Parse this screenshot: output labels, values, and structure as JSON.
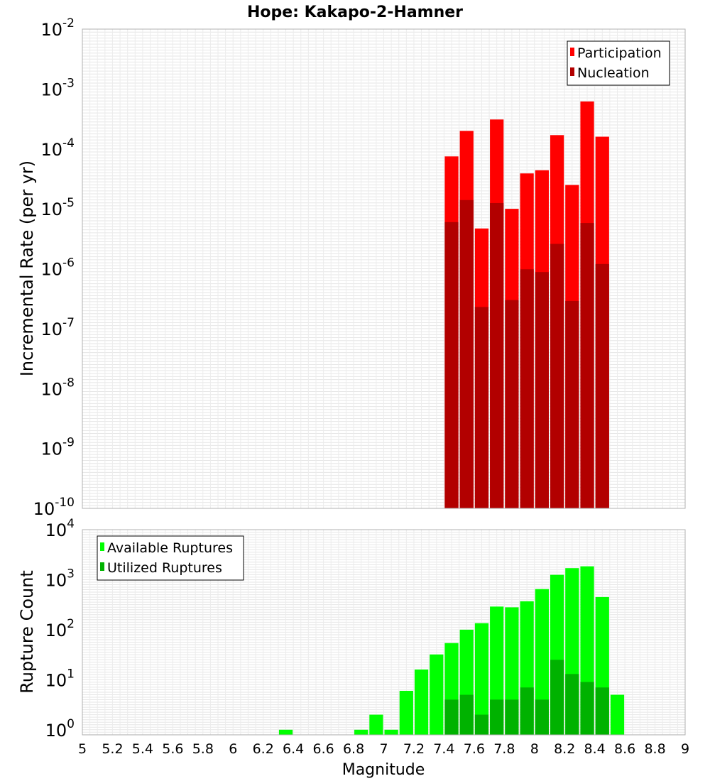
{
  "title": "Hope: Kakapo-2-Hamner",
  "x_axis": {
    "label": "Magnitude",
    "range": [
      5,
      9
    ],
    "ticks": [
      "5",
      "5.2",
      "5.4",
      "5.6",
      "5.8",
      "6",
      "6.2",
      "6.4",
      "6.6",
      "6.8",
      "7",
      "7.2",
      "7.4",
      "7.6",
      "7.8",
      "8",
      "8.2",
      "8.4",
      "8.6",
      "8.8",
      "9"
    ]
  },
  "chart_data": [
    {
      "type": "bar",
      "title": "Hope: Kakapo-2-Hamner",
      "ylabel": "Incremental Rate (per yr)",
      "yscale": "log",
      "ylim": [
        1e-10,
        0.01
      ],
      "y_ticks": [
        {
          "base": "10",
          "exp": "-10"
        },
        {
          "base": "10",
          "exp": "-9"
        },
        {
          "base": "10",
          "exp": "-8"
        },
        {
          "base": "10",
          "exp": "-7"
        },
        {
          "base": "10",
          "exp": "-6"
        },
        {
          "base": "10",
          "exp": "-5"
        },
        {
          "base": "10",
          "exp": "-4"
        },
        {
          "base": "10",
          "exp": "-3"
        },
        {
          "base": "10",
          "exp": "-2"
        }
      ],
      "grid": true,
      "legend_position": "top-right",
      "bar_width": 0.1,
      "x": [
        7.45,
        7.55,
        7.65,
        7.75,
        7.85,
        7.95,
        8.05,
        8.15,
        8.25,
        8.35,
        8.45
      ],
      "series": [
        {
          "name": "Participation",
          "color": "#ff0000",
          "values": [
            7.5e-05,
            0.0002,
            4.7e-06,
            0.00031,
            1e-05,
            3.9e-05,
            4.4e-05,
            0.00017,
            2.5e-05,
            0.00062,
            0.00016
          ]
        },
        {
          "name": "Nucleation",
          "color": "#b20000",
          "values": [
            6e-06,
            1.4e-05,
            2.3e-07,
            1.25e-05,
            3e-07,
            9.8e-07,
            8.8e-07,
            2.6e-06,
            2.9e-07,
            5.8e-06,
            1.2e-06
          ]
        }
      ]
    },
    {
      "type": "bar",
      "ylabel": "Rupture Count",
      "yscale": "log",
      "ylim": [
        0.79,
        10000
      ],
      "y_ticks": [
        {
          "base": "10",
          "exp": "0"
        },
        {
          "base": "10",
          "exp": "1"
        },
        {
          "base": "10",
          "exp": "2"
        },
        {
          "base": "10",
          "exp": "3"
        },
        {
          "base": "10",
          "exp": "4"
        }
      ],
      "grid": true,
      "legend_position": "top-left",
      "bar_width": 0.1,
      "x": [
        6.35,
        6.85,
        6.95,
        7.05,
        7.15,
        7.25,
        7.35,
        7.45,
        7.55,
        7.65,
        7.75,
        7.85,
        7.95,
        8.05,
        8.15,
        8.25,
        8.35,
        8.45,
        8.55
      ],
      "series": [
        {
          "name": "Available Ruptures",
          "color": "#00ff00",
          "values": [
            1,
            1,
            2,
            1,
            6,
            16,
            32,
            54,
            100,
            135,
            290,
            280,
            370,
            650,
            1250,
            1700,
            1850,
            450,
            5
          ]
        },
        {
          "name": "Utilized Ruptures",
          "color": "#00b200",
          "values": [
            0,
            0,
            0,
            0,
            0,
            0,
            0,
            4,
            5,
            2,
            4,
            4,
            7,
            4,
            25,
            13,
            9,
            7,
            0
          ]
        }
      ]
    }
  ]
}
